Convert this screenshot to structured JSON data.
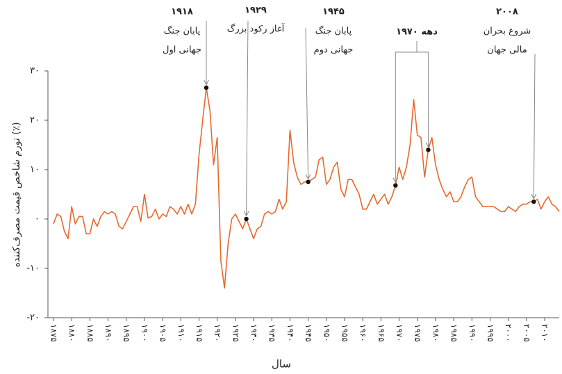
{
  "chart_data": {
    "type": "line",
    "x_label": "سال",
    "y_label": "تورم شاخص قیمت مصرف‌کننده (٪)",
    "x": [
      1875,
      1876,
      1877,
      1878,
      1879,
      1880,
      1881,
      1882,
      1883,
      1884,
      1885,
      1886,
      1887,
      1888,
      1889,
      1890,
      1891,
      1892,
      1893,
      1894,
      1895,
      1896,
      1897,
      1898,
      1899,
      1900,
      1901,
      1902,
      1903,
      1904,
      1905,
      1906,
      1907,
      1908,
      1909,
      1910,
      1911,
      1912,
      1913,
      1914,
      1915,
      1916,
      1917,
      1918,
      1919,
      1920,
      1921,
      1922,
      1923,
      1924,
      1925,
      1926,
      1927,
      1928,
      1929,
      1930,
      1931,
      1932,
      1933,
      1934,
      1935,
      1936,
      1937,
      1938,
      1939,
      1940,
      1941,
      1942,
      1943,
      1944,
      1945,
      1946,
      1947,
      1948,
      1949,
      1950,
      1951,
      1952,
      1953,
      1954,
      1955,
      1956,
      1957,
      1958,
      1959,
      1960,
      1961,
      1962,
      1963,
      1964,
      1965,
      1966,
      1967,
      1968,
      1969,
      1970,
      1971,
      1972,
      1973,
      1974,
      1975,
      1976,
      1977,
      1978,
      1979,
      1980,
      1981,
      1982,
      1983,
      1984,
      1985,
      1986,
      1987,
      1988,
      1989,
      1990,
      1991,
      1992,
      1993,
      1994,
      1995,
      1996,
      1997,
      1998,
      1999,
      2000,
      2001,
      2002,
      2003,
      2004,
      2005,
      2006,
      2007,
      2008,
      2009,
      2010,
      2011,
      2012,
      2013,
      2014
    ],
    "series": [
      {
        "color": "#e8692d",
        "values": [
          -1,
          1,
          0.5,
          -2.5,
          -4,
          2.5,
          -1,
          0.5,
          0.5,
          -3,
          -3,
          0,
          -1.5,
          0.5,
          1.5,
          1,
          1.5,
          1,
          -1.5,
          -2,
          -0.5,
          1,
          2.5,
          2.5,
          -0.5,
          5,
          0.2,
          0.5,
          2,
          0,
          1,
          0.5,
          2.5,
          2,
          1,
          2.5,
          1,
          3,
          1,
          3,
          13,
          20,
          26.6,
          22,
          11,
          16.5,
          -8.5,
          -14,
          -5,
          0,
          1,
          -0.5,
          -2,
          0,
          -2,
          -4,
          -2,
          -1.5,
          1,
          1.5,
          1,
          1.5,
          4,
          2,
          3.5,
          18,
          11.5,
          8.5,
          7,
          7.5,
          7.5,
          8,
          8.5,
          12,
          12.5,
          7,
          8,
          10.5,
          11.5,
          6,
          4.5,
          8,
          8,
          6.5,
          5,
          2,
          2,
          3.5,
          5,
          3,
          4,
          5,
          3,
          4.5,
          6.8,
          10.5,
          8,
          10.5,
          15,
          24.2,
          17,
          16.5,
          8.5,
          14,
          16.5,
          11,
          8,
          6,
          4.5,
          5.5,
          3.5,
          3.5,
          4.5,
          6.5,
          8,
          8.5,
          4.5,
          3.5,
          2.5,
          2.5,
          2.5,
          2.5,
          2,
          1.5,
          1.5,
          2.5,
          2,
          1.5,
          2.5,
          3,
          3,
          3.5,
          3.5,
          4,
          2,
          3.5,
          4.5,
          3,
          2.5,
          1.5
        ]
      }
    ],
    "xlim": [
      1875,
      2014
    ],
    "ylim": [
      -20,
      30
    ],
    "yticks": [
      {
        "value": -20,
        "label": "-۲۰"
      },
      {
        "value": -10,
        "label": "-۱۰"
      },
      {
        "value": 0,
        "label": "۰"
      },
      {
        "value": 10,
        "label": "۱۰"
      },
      {
        "value": 20,
        "label": "۲۰"
      },
      {
        "value": 30,
        "label": "۳۰"
      }
    ],
    "xticks": [
      {
        "value": 1875,
        "label": "۱۸۷۵"
      },
      {
        "value": 1880,
        "label": "۱۸۸۰"
      },
      {
        "value": 1885,
        "label": "۱۸۸۵"
      },
      {
        "value": 1890,
        "label": "۱۸۹۰"
      },
      {
        "value": 1895,
        "label": "۱۸۹۵"
      },
      {
        "value": 1900,
        "label": "۱۹۰۰"
      },
      {
        "value": 1905,
        "label": "۱۹۰۵"
      },
      {
        "value": 1910,
        "label": "۱۹۱۰"
      },
      {
        "value": 1915,
        "label": "۱۹۱۵"
      },
      {
        "value": 1920,
        "label": "۱۹۲۰"
      },
      {
        "value": 1925,
        "label": "۱۹۲۵"
      },
      {
        "value": 1930,
        "label": "۱۹۳۰"
      },
      {
        "value": 1935,
        "label": "۱۹۳۵"
      },
      {
        "value": 1940,
        "label": "۱۹۴۰"
      },
      {
        "value": 1945,
        "label": "۱۹۴۵"
      },
      {
        "value": 1950,
        "label": "۱۹۵۰"
      },
      {
        "value": 1955,
        "label": "۱۹۵۵"
      },
      {
        "value": 1960,
        "label": "۱۹۶۰"
      },
      {
        "value": 1965,
        "label": "۱۹۶۵"
      },
      {
        "value": 1970,
        "label": "۱۹۷۰"
      },
      {
        "value": 1975,
        "label": "۱۹۷۵"
      },
      {
        "value": 1980,
        "label": "۱۹۸۰"
      },
      {
        "value": 1985,
        "label": "۱۹۸۵"
      },
      {
        "value": 1990,
        "label": "۱۹۹۰"
      },
      {
        "value": 1995,
        "label": "۱۹۹۵"
      },
      {
        "value": 2000,
        "label": "۲۰۰۰"
      },
      {
        "value": 2005,
        "label": "۲۰۰۵"
      },
      {
        "value": 2010,
        "label": "۲۰۱۰"
      }
    ],
    "annotations": [
      {
        "x": 1917,
        "lines": [
          "۱۹۱۸",
          "پایان جنگ",
          "جهانی اول"
        ]
      },
      {
        "x": 1928,
        "lines": [
          "۱۹۲۹",
          "آغاز رکود بزرگ"
        ]
      },
      {
        "x": 1945,
        "lines": [
          "۱۹۴۵",
          "پایان جنگ",
          "جهانی دوم"
        ]
      },
      {
        "x": [
          1969,
          1978
        ],
        "lines": [
          "دهه ۱۹۷۰"
        ]
      },
      {
        "x": 2007,
        "lines": [
          "۲۰۰۸",
          "شروع بحران",
          "مالی جهان"
        ]
      }
    ]
  }
}
